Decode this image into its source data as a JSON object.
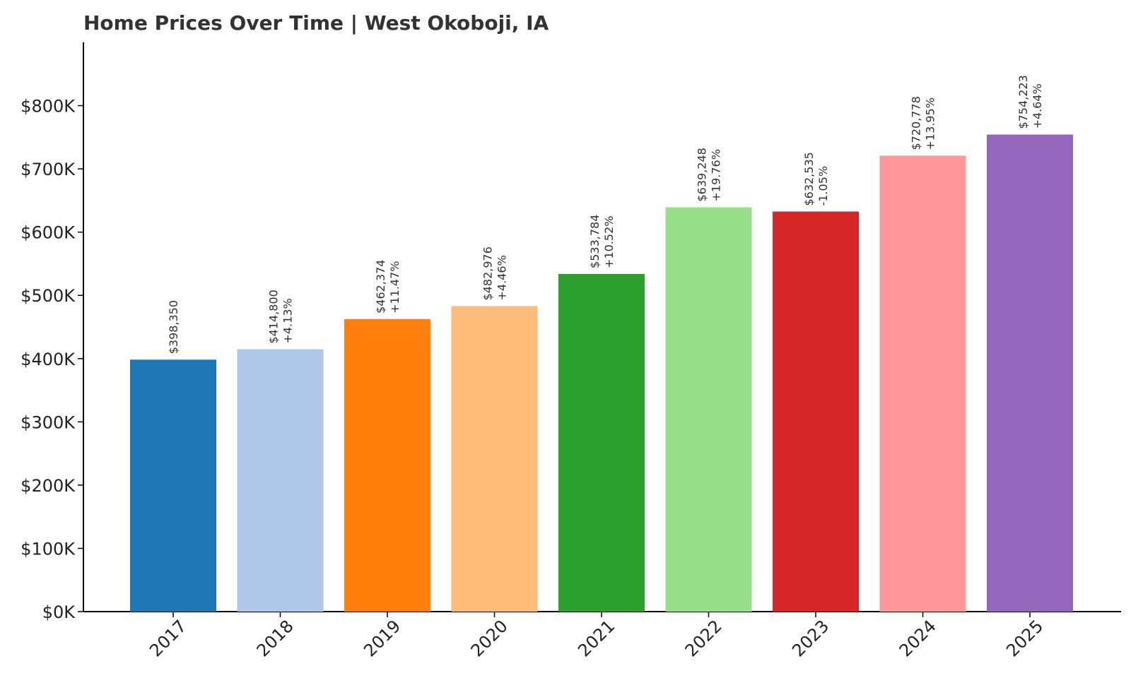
{
  "title": "Home Prices Over Time | West Okoboji, IA",
  "chart_data": {
    "type": "bar",
    "title": "Home Prices Over Time | West Okoboji, IA",
    "xlabel": "",
    "ylabel": "",
    "ylim": [
      0,
      900000
    ],
    "grid": false,
    "y_ticks": [
      0,
      100000,
      200000,
      300000,
      400000,
      500000,
      600000,
      700000,
      800000
    ],
    "y_tick_labels": [
      "$0K",
      "$100K",
      "$200K",
      "$300K",
      "$400K",
      "$500K",
      "$600K",
      "$700K",
      "$800K"
    ],
    "categories": [
      "2017",
      "2018",
      "2019",
      "2020",
      "2021",
      "2022",
      "2023",
      "2024",
      "2025"
    ],
    "values": [
      398350,
      414800,
      462374,
      482976,
      533784,
      639248,
      632535,
      720778,
      754223
    ],
    "value_labels": [
      "$398,350",
      "$414,800",
      "$462,374",
      "$482,976",
      "$533,784",
      "$639,248",
      "$632,535",
      "$720,778",
      "$754,223"
    ],
    "change_labels": [
      "",
      "+4.13%",
      "+11.47%",
      "+4.46%",
      "+10.52%",
      "+19.76%",
      "-1.05%",
      "+13.95%",
      "+4.64%"
    ],
    "colors": [
      "#1f77b4",
      "#aec7e8",
      "#ff7f0e",
      "#ffbb78",
      "#2ca02c",
      "#98df8a",
      "#d62728",
      "#ff9896",
      "#9467bd"
    ]
  }
}
